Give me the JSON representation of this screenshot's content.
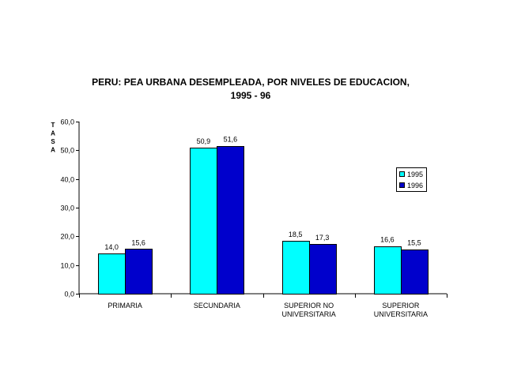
{
  "chart_data": {
    "type": "bar",
    "title_lines": [
      "PERU: PEA URBANA DESEMPLEADA, POR NIVELES DE EDUCACION,",
      "1995 - 96"
    ],
    "ylabel": "TASA",
    "xlabel": "",
    "ylim": [
      0,
      60
    ],
    "y_ticks": [
      "0,0",
      "10,0",
      "20,0",
      "30,0",
      "40,0",
      "50,0",
      "60,0"
    ],
    "y_tick_values": [
      0,
      10,
      20,
      30,
      40,
      50,
      60
    ],
    "categories": [
      [
        "PRIMARIA"
      ],
      [
        "SECUNDARIA"
      ],
      [
        "SUPERIOR NO",
        "UNIVERSITARIA"
      ],
      [
        "SUPERIOR",
        "UNIVERSITARIA"
      ]
    ],
    "series": [
      {
        "name": "1995",
        "color": "#00FFFF",
        "values": [
          14.0,
          50.9,
          18.5,
          16.6
        ],
        "labels": [
          "14,0",
          "50,9",
          "18,5",
          "16,6"
        ]
      },
      {
        "name": "1996",
        "color": "#0000CC",
        "values": [
          15.6,
          51.6,
          17.3,
          15.5
        ],
        "labels": [
          "15,6",
          "51,6",
          "17,3",
          "15,5"
        ]
      }
    ],
    "grid": false,
    "legend_position": "right"
  }
}
